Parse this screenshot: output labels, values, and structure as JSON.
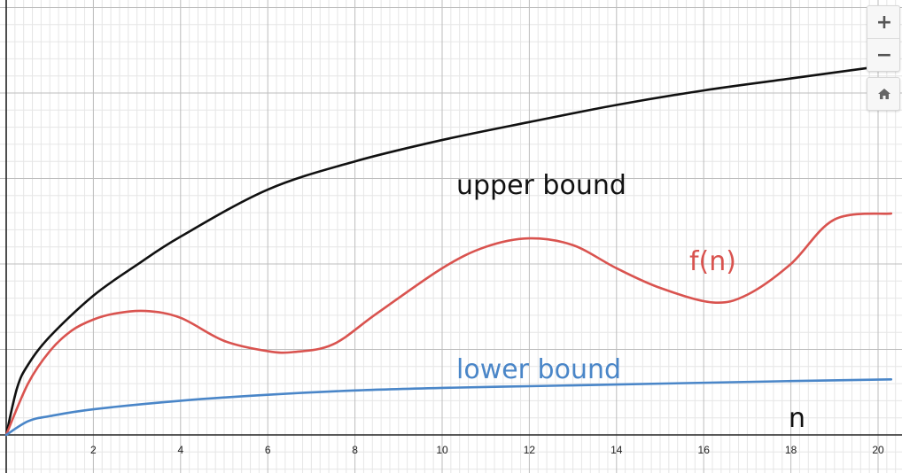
{
  "controls": {
    "zoom_in_label": "+",
    "zoom_out_label": "−",
    "home_icon": "home-icon"
  },
  "chart_data": {
    "type": "line",
    "x_ticks": [
      "2",
      "4",
      "6",
      "8",
      "10",
      "12",
      "14",
      "16",
      "18",
      "20"
    ],
    "x_tick_values": [
      2,
      4,
      6,
      8,
      10,
      12,
      14,
      16,
      18,
      20
    ],
    "xlim": [
      0,
      20.3
    ],
    "ylim": [
      0,
      5
    ],
    "grid": true,
    "xlabel": "n",
    "series": [
      {
        "name": "upper bound",
        "color": "#111111",
        "x": [
          0,
          0.25,
          0.5,
          1,
          2,
          3,
          4,
          6,
          8,
          10,
          12,
          14,
          16,
          18,
          20.3
        ],
        "y": [
          0,
          0.55,
          0.82,
          1.15,
          1.63,
          1.99,
          2.32,
          2.87,
          3.2,
          3.45,
          3.66,
          3.86,
          4.03,
          4.17,
          4.33
        ]
      },
      {
        "name": "f(n)",
        "color": "#d9534f",
        "x": [
          0,
          0.5,
          1,
          1.5,
          2,
          2.5,
          3.2,
          4,
          5,
          6,
          6.6,
          7.5,
          8.5,
          10,
          11,
          12,
          13,
          14,
          15,
          16.2,
          17,
          18,
          19,
          20.3
        ],
        "y": [
          0,
          0.6,
          0.98,
          1.22,
          1.35,
          1.42,
          1.45,
          1.37,
          1.1,
          0.98,
          0.97,
          1.06,
          1.42,
          1.95,
          2.2,
          2.3,
          2.22,
          1.95,
          1.72,
          1.55,
          1.64,
          2.0,
          2.52,
          2.59
        ]
      },
      {
        "name": "lower bound",
        "color": "#4a86c8",
        "x": [
          0,
          0.5,
          1,
          2,
          4,
          6,
          8,
          10,
          12,
          14,
          16,
          18,
          20.3
        ],
        "y": [
          0,
          0.16,
          0.22,
          0.3,
          0.4,
          0.47,
          0.52,
          0.55,
          0.57,
          0.59,
          0.61,
          0.63,
          0.65
        ]
      }
    ]
  }
}
